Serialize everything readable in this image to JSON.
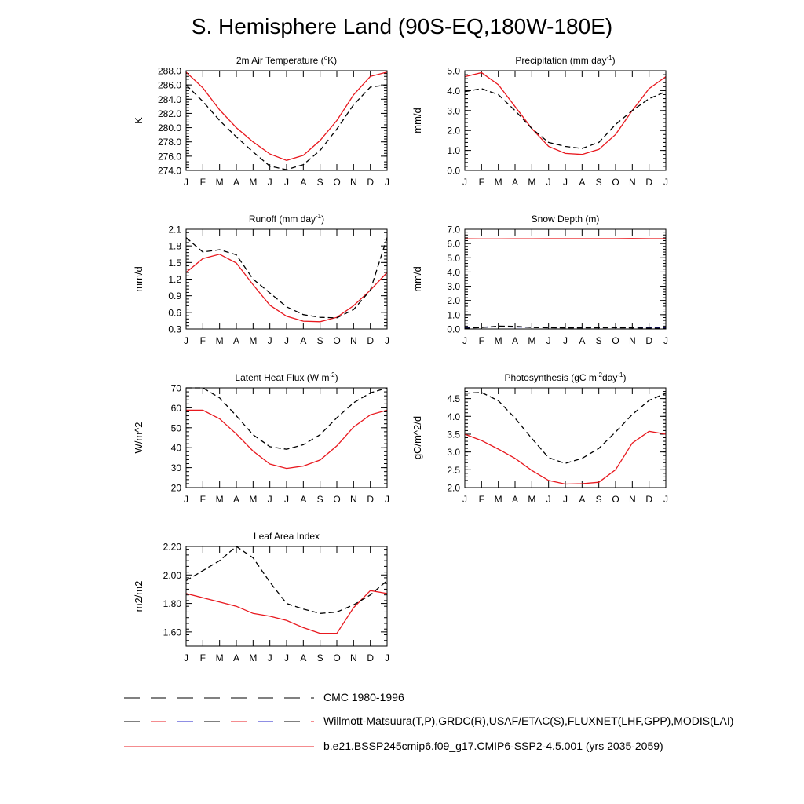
{
  "title": "S. Hemisphere Land (90S-EQ,180W-180E)",
  "months": [
    "J",
    "F",
    "M",
    "A",
    "M",
    "J",
    "J",
    "A",
    "S",
    "O",
    "N",
    "D",
    "J"
  ],
  "colors": {
    "model": "#e8191f",
    "obs": "#000000",
    "obs_alt": "#1f1fc8"
  },
  "legend": [
    {
      "label": "CMC 1980-1996",
      "style": "dashed",
      "colors": [
        "#000000"
      ]
    },
    {
      "label": "Willmott-Matsuura(T,P),GRDC(R),USAF/ETAC(S),FLUXNET(LHF,GPP),MODIS(LAI)",
      "style": "dashed",
      "colors": [
        "#000000",
        "#e8191f",
        "#1f1fc8"
      ]
    },
    {
      "label": "b.e21.BSSP245cmip6.f09_g17.CMIP6-SSP2-4.5.001 (yrs 2035-2059)",
      "style": "solid",
      "colors": [
        "#e8191f"
      ]
    }
  ],
  "chart_data": [
    {
      "type": "line",
      "title": "2m Air Temperature (",
      "title_sup": "o",
      "title_end": "K)",
      "ylabel": "K",
      "ylim": [
        274,
        288
      ],
      "yticks": [
        "274.0",
        "276.0",
        "278.0",
        "280.0",
        "282.0",
        "284.0",
        "286.0",
        "288.0"
      ],
      "ytick_values": [
        274,
        276,
        278,
        280,
        282,
        284,
        286,
        288
      ],
      "series": [
        {
          "values": [
            287.8,
            285.6,
            282.5,
            280.0,
            278.0,
            276.3,
            275.4,
            276.1,
            278.2,
            281.0,
            284.6,
            287.2,
            287.8
          ],
          "style": "solid",
          "color": "#e8191f"
        },
        {
          "values": [
            286.0,
            283.7,
            281.0,
            278.7,
            276.6,
            274.6,
            274.1,
            274.8,
            276.8,
            279.8,
            283.2,
            285.7,
            286.0
          ],
          "style": "dashed",
          "color": "#000000"
        }
      ]
    },
    {
      "type": "line",
      "title": "Precipitation (mm day",
      "title_sup": "-1",
      "title_end": ")",
      "ylabel": "mm/d",
      "ylim": [
        0,
        5
      ],
      "yticks": [
        "0.0",
        "1.0",
        "2.0",
        "3.0",
        "4.0",
        "5.0"
      ],
      "ytick_values": [
        0,
        1,
        2,
        3,
        4,
        5
      ],
      "series": [
        {
          "values": [
            4.7,
            4.9,
            4.3,
            3.2,
            2.1,
            1.2,
            0.85,
            0.8,
            1.05,
            1.8,
            3.0,
            4.1,
            4.7
          ],
          "style": "solid",
          "color": "#e8191f"
        },
        {
          "values": [
            3.95,
            4.1,
            3.8,
            3.0,
            2.1,
            1.4,
            1.2,
            1.1,
            1.4,
            2.3,
            3.0,
            3.6,
            3.95
          ],
          "style": "dashed",
          "color": "#000000"
        }
      ]
    },
    {
      "type": "line",
      "title": "Runoff (mm day",
      "title_sup": "-1",
      "title_end": ")",
      "ylabel": "mm/d",
      "ylim": [
        0.3,
        2.1
      ],
      "yticks": [
        "0.3",
        "0.6",
        "0.9",
        "1.2",
        "1.5",
        "1.8",
        "2.1"
      ],
      "ytick_values": [
        0.3,
        0.6,
        0.9,
        1.2,
        1.5,
        1.8,
        2.1
      ],
      "series": [
        {
          "values": [
            1.32,
            1.57,
            1.65,
            1.49,
            1.1,
            0.73,
            0.53,
            0.44,
            0.43,
            0.51,
            0.72,
            1.0,
            1.32
          ],
          "style": "solid",
          "color": "#e8191f"
        },
        {
          "values": [
            1.95,
            1.69,
            1.73,
            1.64,
            1.2,
            0.95,
            0.7,
            0.56,
            0.51,
            0.5,
            0.65,
            1.0,
            1.95
          ],
          "style": "dashed",
          "color": "#000000"
        }
      ]
    },
    {
      "type": "line",
      "title": "Snow Depth (m)",
      "title_sup": "",
      "title_end": "",
      "ylabel": "mm/d",
      "ylim": [
        0,
        7
      ],
      "yticks": [
        "0.0",
        "1.0",
        "2.0",
        "3.0",
        "4.0",
        "5.0",
        "6.0",
        "7.0"
      ],
      "ytick_values": [
        0,
        1,
        2,
        3,
        4,
        5,
        6,
        7
      ],
      "series": [
        {
          "values": [
            6.33,
            6.32,
            6.32,
            6.33,
            6.33,
            6.34,
            6.34,
            6.34,
            6.34,
            6.34,
            6.35,
            6.34,
            6.34
          ],
          "style": "solid",
          "color": "#e8191f"
        },
        {
          "values": [
            0.08,
            0.12,
            0.16,
            0.14,
            0.12,
            0.11,
            0.1,
            0.1,
            0.11,
            0.11,
            0.1,
            0.09,
            0.08
          ],
          "style": "dashed",
          "color": "#1f1fc8"
        },
        {
          "values": [
            0.05,
            0.1,
            0.2,
            0.18,
            0.1,
            0.08,
            0.07,
            0.07,
            0.08,
            0.08,
            0.07,
            0.06,
            0.05
          ],
          "style": "dashed",
          "color": "#000000"
        }
      ]
    },
    {
      "type": "line",
      "title": "Latent Heat Flux (W m",
      "title_sup": "-2",
      "title_end": ")",
      "ylabel": "W/m^2",
      "ylim": [
        20,
        70
      ],
      "yticks": [
        "20",
        "30",
        "40",
        "50",
        "60",
        "70"
      ],
      "ytick_values": [
        20,
        30,
        40,
        50,
        60,
        70
      ],
      "series": [
        {
          "values": [
            58.8,
            58.8,
            54.5,
            46.9,
            38.3,
            31.8,
            29.6,
            30.8,
            33.8,
            40.9,
            50.3,
            56.5,
            58.8
          ],
          "style": "solid",
          "color": "#e8191f"
        },
        {
          "values": [
            70.0,
            70.0,
            65.0,
            56.0,
            46.5,
            40.5,
            39.2,
            41.5,
            46.5,
            55.0,
            62.5,
            67.5,
            70.0
          ],
          "style": "dashed",
          "color": "#000000"
        }
      ]
    },
    {
      "type": "line",
      "title": "Photosynthesis (gC m",
      "title_sup": "-2",
      "title_end": "day",
      "title_sup2": "-1",
      "title_end2": ")",
      "ylabel": "gC/m^2/d",
      "ylim": [
        2.0,
        4.8
      ],
      "yticks": [
        "2.0",
        "2.5",
        "3.0",
        "3.5",
        "4.0",
        "4.5"
      ],
      "ytick_values": [
        2.0,
        2.5,
        3.0,
        3.5,
        4.0,
        4.5
      ],
      "series": [
        {
          "values": [
            3.5,
            3.32,
            3.08,
            2.82,
            2.48,
            2.2,
            2.1,
            2.11,
            2.15,
            2.5,
            3.25,
            3.58,
            3.5
          ],
          "style": "solid",
          "color": "#e8191f"
        },
        {
          "values": [
            4.65,
            4.67,
            4.44,
            3.95,
            3.38,
            2.84,
            2.68,
            2.82,
            3.1,
            3.56,
            4.05,
            4.45,
            4.65
          ],
          "style": "dashed",
          "color": "#000000"
        }
      ]
    },
    {
      "type": "line",
      "title": "Leaf Area Index",
      "title_sup": "",
      "title_end": "",
      "ylabel": "m2/m2",
      "ylim": [
        1.5,
        2.2
      ],
      "yticks": [
        "1.60",
        "1.80",
        "2.00",
        "2.20"
      ],
      "ytick_values": [
        1.6,
        1.8,
        2.0,
        2.2
      ],
      "series": [
        {
          "values": [
            1.87,
            1.84,
            1.81,
            1.78,
            1.73,
            1.71,
            1.68,
            1.63,
            1.59,
            1.59,
            1.77,
            1.89,
            1.87
          ],
          "style": "solid",
          "color": "#e8191f"
        },
        {
          "values": [
            1.96,
            2.03,
            2.1,
            2.2,
            2.12,
            1.95,
            1.8,
            1.76,
            1.73,
            1.74,
            1.79,
            1.86,
            1.96
          ],
          "style": "dashed",
          "color": "#000000"
        }
      ]
    }
  ]
}
